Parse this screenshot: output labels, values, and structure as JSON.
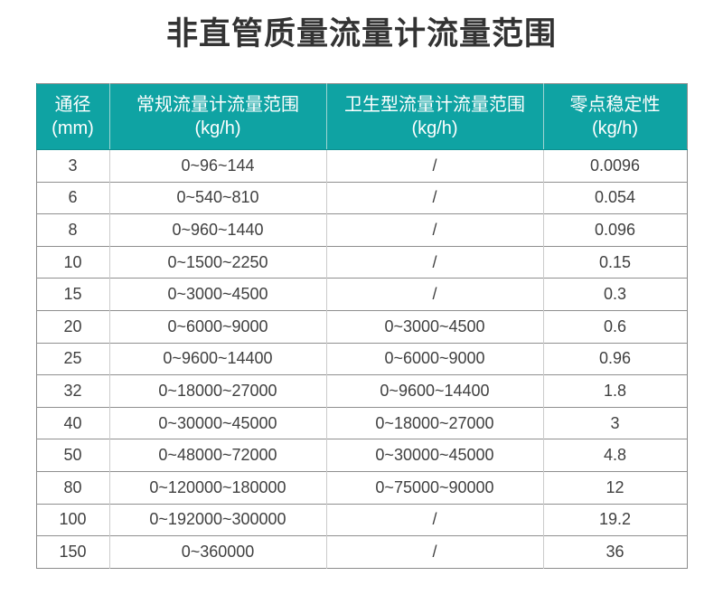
{
  "page": {
    "background": "#ffffff"
  },
  "colors": {
    "header_background": "#0fa3a3",
    "header_text": "#ffffff",
    "title_text": "#333333",
    "cell_text": "#404040",
    "row_border": "#8f8f8f",
    "column_border": "#cbcbcb"
  },
  "columns_split": [
    {
      "title": "通径",
      "unit": "(mm)"
    },
    {
      "title": "常规流量计流量范围",
      "unit": "(kg/h)"
    },
    {
      "title": "卫生型流量计流量范围",
      "unit": "(kg/h)"
    },
    {
      "title": "零点稳定性",
      "unit": "(kg/h)"
    }
  ],
  "chart_data": {
    "type": "table",
    "title": "非直管质量流量计流量范围",
    "columns": [
      "通径(mm)",
      "常规流量计流量范围(kg/h)",
      "卫生型流量计流量范围(kg/h)",
      "零点稳定性(kg/h)"
    ],
    "rows": [
      [
        "3",
        "0~96~144",
        "/",
        "0.0096"
      ],
      [
        "6",
        "0~540~810",
        "/",
        "0.054"
      ],
      [
        "8",
        "0~960~1440",
        "/",
        "0.096"
      ],
      [
        "10",
        "0~1500~2250",
        "/",
        "0.15"
      ],
      [
        "15",
        "0~3000~4500",
        "/",
        "0.3"
      ],
      [
        "20",
        "0~6000~9000",
        "0~3000~4500",
        "0.6"
      ],
      [
        "25",
        "0~9600~14400",
        "0~6000~9000",
        "0.96"
      ],
      [
        "32",
        "0~18000~27000",
        "0~9600~14400",
        "1.8"
      ],
      [
        "40",
        "0~30000~45000",
        "0~18000~27000",
        "3"
      ],
      [
        "50",
        "0~48000~72000",
        "0~30000~45000",
        "4.8"
      ],
      [
        "80",
        "0~120000~180000",
        "0~75000~90000",
        "12"
      ],
      [
        "100",
        "0~192000~300000",
        "/",
        "19.2"
      ],
      [
        "150",
        "0~360000",
        "/",
        "36"
      ]
    ]
  }
}
